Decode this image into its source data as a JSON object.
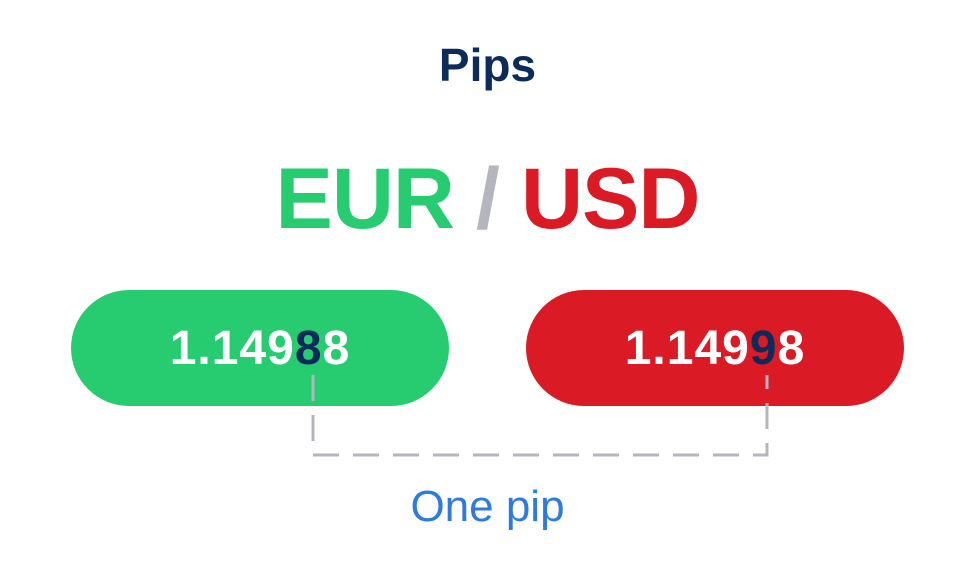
{
  "title": "Pips",
  "pair": {
    "base": "EUR",
    "separator": "/",
    "quote": "USD"
  },
  "prices": {
    "bid": {
      "prefix": "1.149",
      "pip_digit": "8",
      "suffix": "8"
    },
    "ask": {
      "prefix": "1.149",
      "pip_digit": "9",
      "suffix": "8"
    }
  },
  "annotation": "One pip",
  "colors": {
    "base": "#27cc70",
    "quote": "#da1a24",
    "highlight": "#0d2b5a",
    "annotation": "#2e7be0",
    "connector": "#b5b5bd"
  }
}
